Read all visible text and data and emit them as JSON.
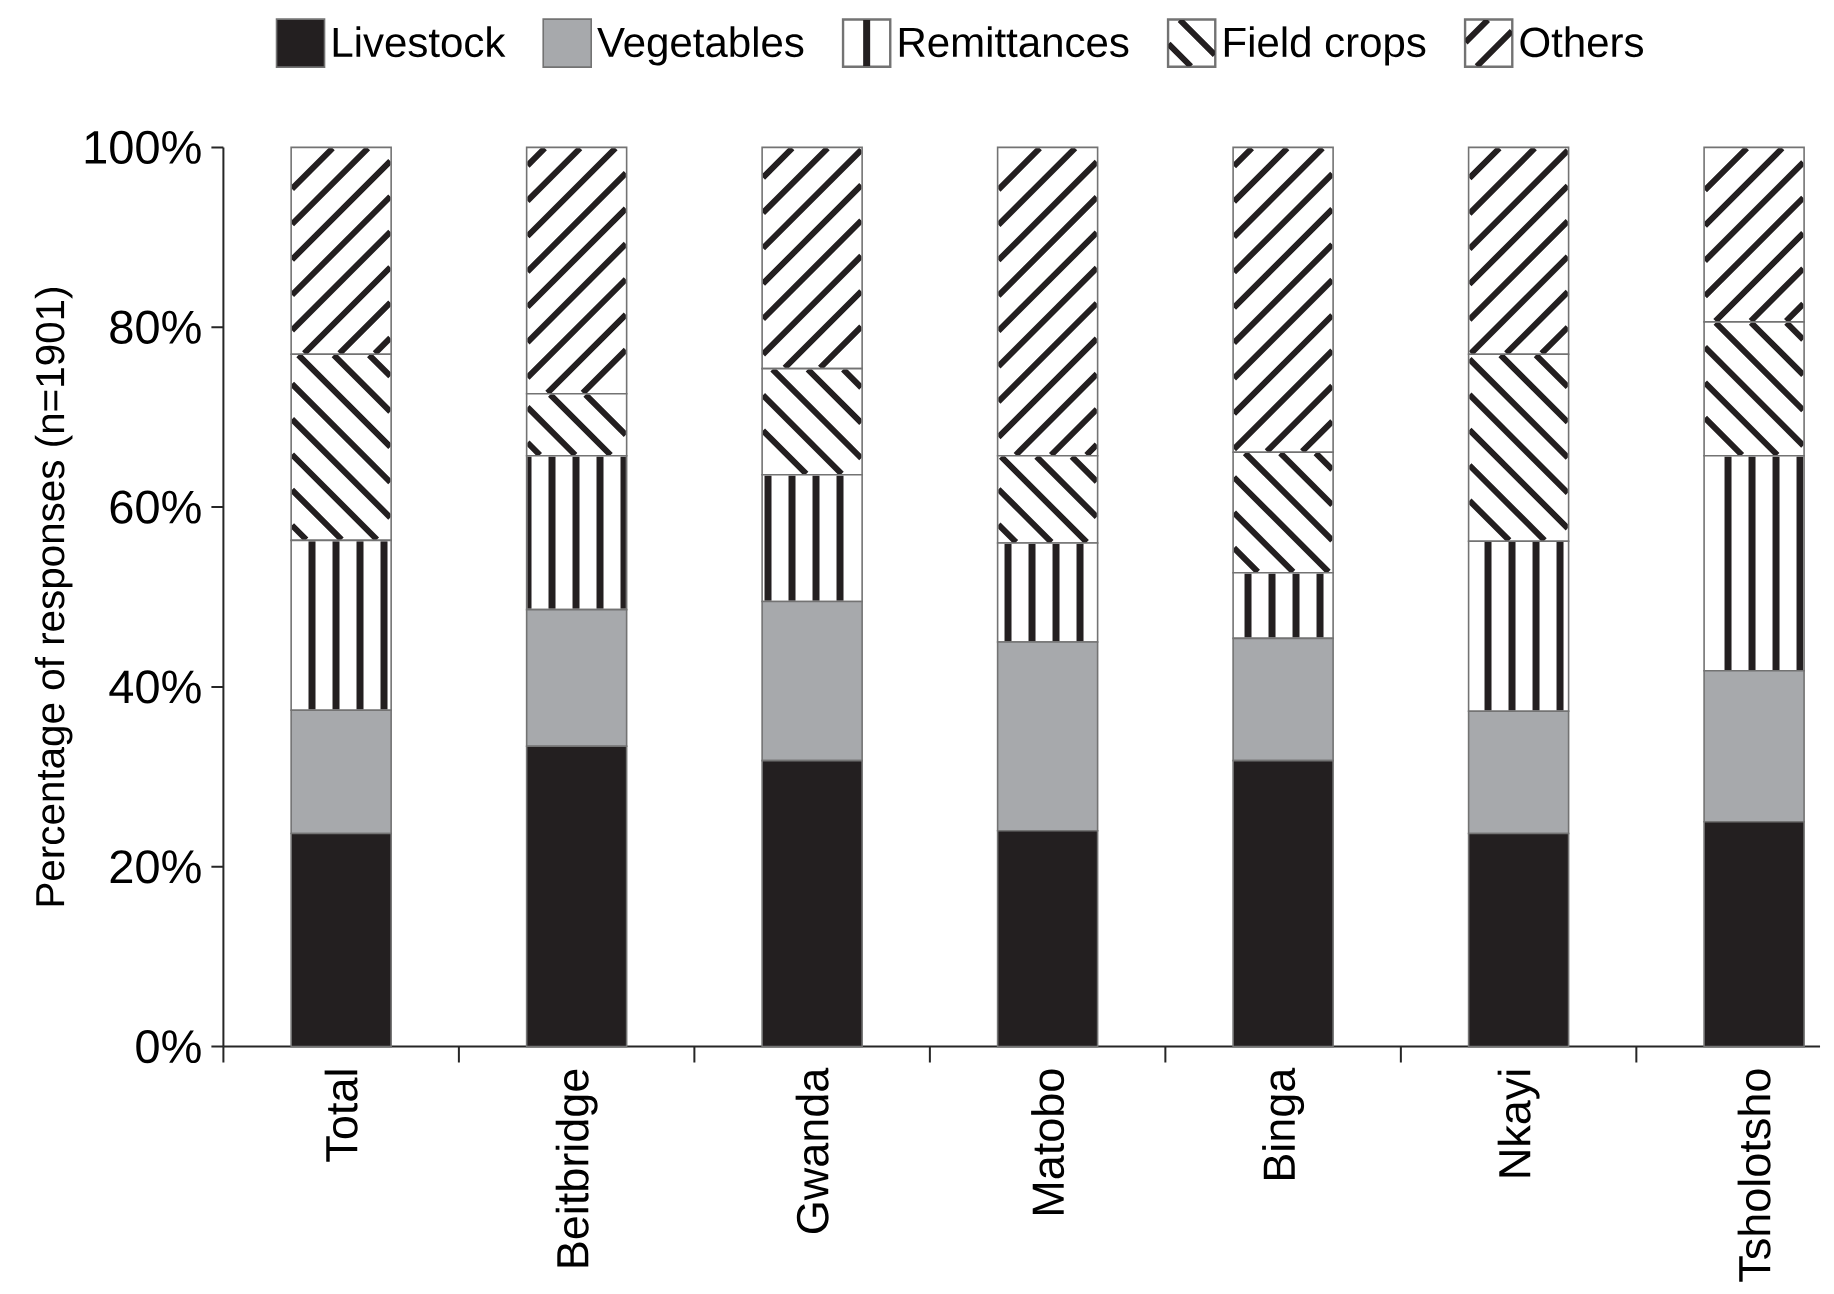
{
  "chart_data": {
    "type": "bar",
    "stacked": true,
    "ylabel": "Percentage of responses (n=1901)",
    "categories": [
      "Total",
      "Beitbridge",
      "Gwanda",
      "Matobo",
      "Binga",
      "Nkayi",
      "Tsholotsho"
    ],
    "series": [
      {
        "name": "Livestock",
        "color": "#231f20",
        "values": [
          23.7,
          33.4,
          31.8,
          24.0,
          31.8,
          23.7,
          25.0
        ]
      },
      {
        "name": "Vegetables",
        "color": "#a7a9ac",
        "values": [
          13.7,
          15.2,
          17.7,
          21.0,
          13.6,
          13.6,
          16.8
        ]
      },
      {
        "name": "Remittances",
        "color": "#ffffff",
        "values": [
          18.9,
          17.1,
          14.1,
          11.0,
          7.3,
          18.9,
          23.9
        ]
      },
      {
        "name": "Field crops",
        "color": "#ffffff",
        "values": [
          20.7,
          6.9,
          11.8,
          9.7,
          13.4,
          20.8,
          14.9
        ]
      },
      {
        "name": "Others",
        "color": "#ffffff",
        "values": [
          23.0,
          27.4,
          24.6,
          34.3,
          33.9,
          23.0,
          19.4
        ]
      }
    ],
    "ylim": [
      0,
      100
    ],
    "yticks": [
      {
        "value": 0,
        "label": "0%"
      },
      {
        "value": 20,
        "label": "20%"
      },
      {
        "value": 40,
        "label": "40%"
      },
      {
        "value": 60,
        "label": "60%"
      },
      {
        "value": 80,
        "label": "80%"
      },
      {
        "value": 100,
        "label": "100%"
      }
    ],
    "legend": "top"
  }
}
